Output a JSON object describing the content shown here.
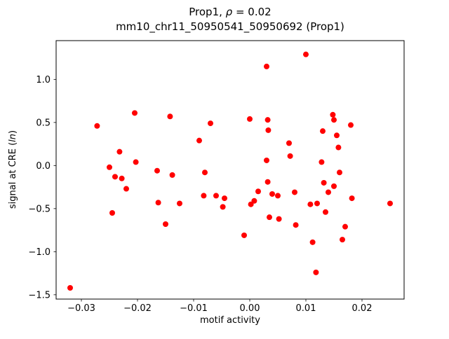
{
  "figure": {
    "title_line1": {
      "prefix": "Prop1, ",
      "rho": "ρ",
      "suffix": " = 0.02"
    },
    "title_line2": "mm10_chr11_50950541_50950692 (Prop1)",
    "xlabel": "motif activity",
    "ylabel_prefix": "signal at CRE (",
    "ylabel_italic": "ln",
    "ylabel_suffix": ")"
  },
  "chart_data": {
    "type": "scatter",
    "title": "Prop1, ρ = 0.02",
    "subtitle": "mm10_chr11_50950541_50950692 (Prop1)",
    "xlabel": "motif activity",
    "ylabel": "signal at CRE (ln)",
    "grid": false,
    "legend_position": "none",
    "marker_color": "#ff0000",
    "marker_radius": 4,
    "xlim": [
      -0.0345,
      0.0275
    ],
    "ylim": [
      -1.55,
      1.45
    ],
    "x_ticks": {
      "values": [
        -0.03,
        -0.02,
        -0.01,
        0.0,
        0.01,
        0.02
      ],
      "labels": [
        "−0.03",
        "−0.02",
        "−0.01",
        "0.00",
        "0.01",
        "0.02"
      ]
    },
    "y_ticks": {
      "values": [
        -1.5,
        -1.0,
        -0.5,
        0.0,
        0.5,
        1.0
      ],
      "labels": [
        "−1.5",
        "−1.0",
        "−0.5",
        "0.0",
        "0.5",
        "1.0"
      ]
    },
    "points": [
      [
        -0.032,
        -1.42
      ],
      [
        -0.0272,
        0.46
      ],
      [
        -0.025,
        -0.02
      ],
      [
        -0.0245,
        -0.55
      ],
      [
        -0.024,
        -0.13
      ],
      [
        -0.0232,
        0.16
      ],
      [
        -0.0228,
        -0.15
      ],
      [
        -0.022,
        -0.27
      ],
      [
        -0.0205,
        0.61
      ],
      [
        -0.0203,
        0.04
      ],
      [
        -0.0165,
        -0.06
      ],
      [
        -0.0163,
        -0.43
      ],
      [
        -0.015,
        -0.68
      ],
      [
        -0.0142,
        0.57
      ],
      [
        -0.0138,
        -0.11
      ],
      [
        -0.0125,
        -0.44
      ],
      [
        -0.009,
        0.29
      ],
      [
        -0.0082,
        -0.35
      ],
      [
        -0.008,
        -0.08
      ],
      [
        -0.007,
        0.49
      ],
      [
        -0.006,
        -0.35
      ],
      [
        -0.0048,
        -0.48
      ],
      [
        -0.0045,
        -0.38
      ],
      [
        -0.001,
        -0.81
      ],
      [
        0.0,
        0.54
      ],
      [
        0.0002,
        -0.45
      ],
      [
        0.0008,
        -0.41
      ],
      [
        0.0015,
        -0.3
      ],
      [
        0.003,
        1.15
      ],
      [
        0.0032,
        0.53
      ],
      [
        0.0033,
        0.41
      ],
      [
        0.003,
        0.06
      ],
      [
        0.0032,
        -0.19
      ],
      [
        0.004,
        -0.33
      ],
      [
        0.0035,
        -0.6
      ],
      [
        0.005,
        -0.35
      ],
      [
        0.0052,
        -0.62
      ],
      [
        0.007,
        0.26
      ],
      [
        0.0072,
        0.11
      ],
      [
        0.008,
        -0.31
      ],
      [
        0.0082,
        -0.69
      ],
      [
        0.01,
        1.29
      ],
      [
        0.0108,
        -0.45
      ],
      [
        0.0112,
        -0.89
      ],
      [
        0.0118,
        -1.24
      ],
      [
        0.012,
        -0.44
      ],
      [
        0.013,
        0.4
      ],
      [
        0.0128,
        0.04
      ],
      [
        0.0132,
        -0.2
      ],
      [
        0.0135,
        -0.54
      ],
      [
        0.014,
        -0.31
      ],
      [
        0.0148,
        0.59
      ],
      [
        0.015,
        0.53
      ],
      [
        0.015,
        -0.24
      ],
      [
        0.0155,
        0.35
      ],
      [
        0.0158,
        0.21
      ],
      [
        0.016,
        -0.08
      ],
      [
        0.0165,
        -0.86
      ],
      [
        0.017,
        -0.71
      ],
      [
        0.018,
        0.47
      ],
      [
        0.0182,
        -0.38
      ],
      [
        0.025,
        -0.44
      ]
    ]
  }
}
